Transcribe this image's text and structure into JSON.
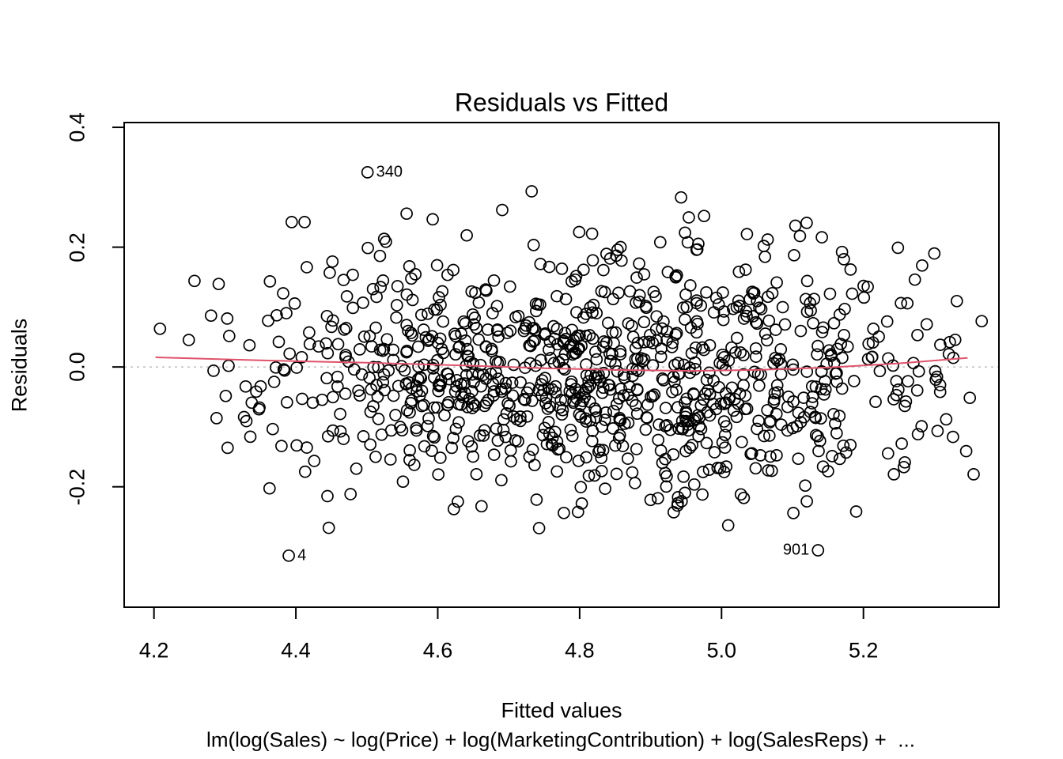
{
  "figure": {
    "title": "Residuals vs Fitted",
    "x_axis_title": "Fitted values",
    "y_axis_title": "Residuals",
    "model_formula": "lm(log(Sales) ~ log(Price) + log(MarketingContribution) + log(SalesReps) +  ..."
  },
  "chart_data": {
    "type": "scatter",
    "title": "Residuals vs Fitted",
    "xlabel": "Fitted values",
    "ylabel": "Residuals",
    "sub_caption": "lm(log(Sales) ~ log(Price) + log(MarketingContribution) + log(SalesReps) +  ...",
    "xlim": [
      4.158,
      5.391
    ],
    "ylim": [
      -0.401,
      0.408
    ],
    "grid": false,
    "x_ticks": {
      "values": [
        4.2,
        4.4,
        4.6,
        4.8,
        5.0,
        5.2
      ],
      "labels": [
        "4.2",
        "4.4",
        "4.6",
        "4.8",
        "5.0",
        "5.2"
      ]
    },
    "y_ticks": {
      "values": [
        -0.2,
        0.0,
        0.2,
        0.4
      ],
      "labels": [
        "-0.2",
        "0.0",
        "0.2",
        "0.4"
      ]
    },
    "marker": {
      "shape": "open-circle",
      "radius_px": 7,
      "color": "#000000",
      "stroke_width": 1.7
    },
    "zero_line": {
      "y": 0,
      "color": "#c3c3c3",
      "style": "dotted"
    },
    "smoother": {
      "color": "#DF536B",
      "width": 2,
      "points": [
        [
          4.203,
          0.016
        ],
        [
          4.35,
          0.011
        ],
        [
          4.5,
          0.007
        ],
        [
          4.65,
          0.002
        ],
        [
          4.75,
          -0.002
        ],
        [
          4.85,
          -0.005
        ],
        [
          4.96,
          -0.0065
        ],
        [
          5.05,
          -0.005
        ],
        [
          5.15,
          -0.001
        ],
        [
          5.25,
          0.006
        ],
        [
          5.346,
          0.015
        ]
      ]
    },
    "labeled_points": [
      {
        "label": "340",
        "x": 4.501,
        "y": 0.325,
        "label_side": "right"
      },
      {
        "label": "4",
        "x": 4.39,
        "y": -0.315,
        "label_side": "right"
      },
      {
        "label": "901",
        "x": 5.136,
        "y": -0.306,
        "label_side": "left"
      }
    ],
    "point_cloud": {
      "n": 1000,
      "seed": 7,
      "x_mean": 4.83,
      "x_sd": 0.25,
      "x_min": 4.197,
      "x_max": 5.368,
      "y_mean": -0.005,
      "y_sd": 0.105,
      "y_min": -0.295,
      "y_max": 0.296,
      "description": "Approximately 1000 unlabeled residual points; cloud synthesized from the depicted distribution (densest near fitted 4.7-5.1, residuals within +/-0.3)"
    }
  },
  "colors": {
    "background": "#ffffff",
    "foreground": "#000000",
    "smoother": "#DF536B",
    "zero_line": "#c3c3c3"
  }
}
